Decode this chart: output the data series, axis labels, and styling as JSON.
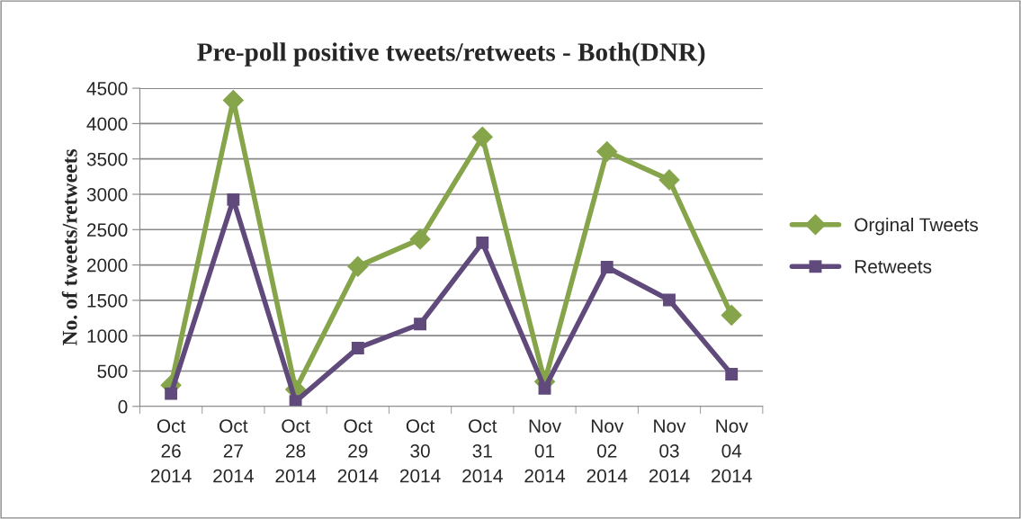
{
  "chart_data": {
    "type": "line",
    "title": "Pre-poll positive tweets/retweets - Both(DNR)",
    "ylabel": "No. of tweets/retweets",
    "categories": [
      "Oct\n26\n2014",
      "Oct\n27\n2014",
      "Oct\n28\n2014",
      "Oct\n29\n2014",
      "Oct\n30\n2014",
      "Oct\n31\n2014",
      "Nov\n01\n2014",
      "Nov\n02\n2014",
      "Nov\n03\n2014",
      "Nov\n04\n2014"
    ],
    "series": [
      {
        "name": "Orginal Tweets",
        "color": "#86a44a",
        "marker": "diamond",
        "values": [
          300,
          4330,
          240,
          1980,
          2365,
          3810,
          350,
          3605,
          3205,
          1290
        ]
      },
      {
        "name": "Retweets",
        "color": "#604a7b",
        "marker": "square",
        "values": [
          180,
          2925,
          70,
          825,
          1165,
          2315,
          255,
          1970,
          1505,
          455
        ]
      }
    ],
    "ylim": [
      0,
      4500
    ],
    "yticks": [
      0,
      500,
      1000,
      1500,
      2000,
      2500,
      3000,
      3500,
      4000,
      4500
    ],
    "grid": "y",
    "legend": "right"
  }
}
